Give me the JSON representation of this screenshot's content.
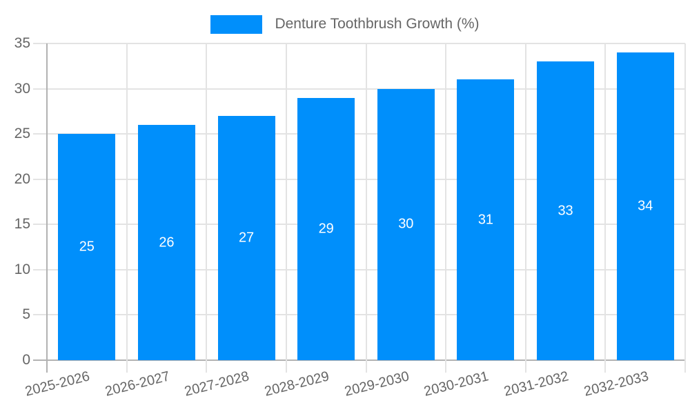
{
  "chart_data": {
    "type": "bar",
    "title": "",
    "categories": [
      "2025-2026",
      "2026-2027",
      "2027-2028",
      "2028-2029",
      "2029-2030",
      "2030-2031",
      "2031-2032",
      "2032-2033"
    ],
    "series": [
      {
        "name": "Denture Toothbrush Growth (%)",
        "values": [
          25,
          26,
          27,
          29,
          30,
          31,
          33,
          34
        ]
      }
    ],
    "data_labels": [
      "25",
      "26",
      "27",
      "29",
      "30",
      "31",
      "33",
      "34"
    ],
    "xlabel": "",
    "ylabel": "",
    "ylim": [
      0,
      35
    ],
    "ytick_step": 5,
    "ytick_labels": [
      "0",
      "5",
      "10",
      "15",
      "20",
      "25",
      "30",
      "35"
    ],
    "grid": "on",
    "legend_position": "top",
    "colors": {
      "bar": "#008FFB",
      "data_label": "#ffffff",
      "axis_text": "#666666",
      "gridline": "#e3e3e3",
      "axis_line": "#b2b2b2"
    }
  }
}
